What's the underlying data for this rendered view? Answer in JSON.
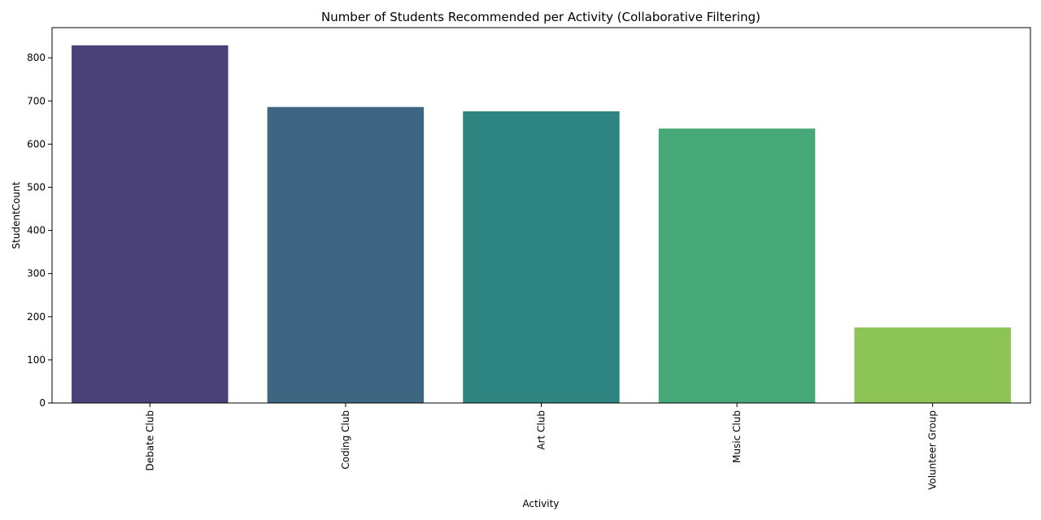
{
  "chart_data": {
    "type": "bar",
    "title": "Number of Students Recommended per Activity (Collaborative Filtering)",
    "xlabel": "Activity",
    "ylabel": "StudentCount",
    "categories": [
      "Debate Club",
      "Coding Club",
      "Art Club",
      "Music Club",
      "Volunteer Group"
    ],
    "values": [
      829,
      686,
      676,
      636,
      175
    ],
    "colors": [
      "#4a4178",
      "#3e6682",
      "#2e8480",
      "#46a877",
      "#8dc456"
    ],
    "ylim": [
      0,
      870
    ],
    "yticks": [
      0,
      100,
      200,
      300,
      400,
      500,
      600,
      700,
      800
    ],
    "grid": false,
    "legend": "none"
  }
}
